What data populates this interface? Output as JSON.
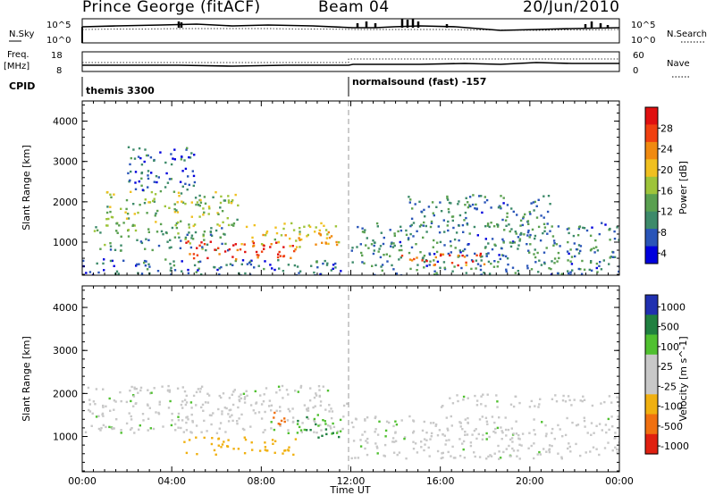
{
  "header": {
    "station": "Prince George (fitACF)",
    "beam": "Beam 04",
    "date": "20/Jun/2010"
  },
  "strip_labels": {
    "nsky": "N.Sky",
    "freq_line1": "Freq.",
    "freq_line2": "[MHz]",
    "cpid": "CPID",
    "nsearch": "N.Search",
    "nave": "Nave"
  },
  "strip_ticks": {
    "nsky_left": [
      "10^5",
      "10^0"
    ],
    "nsky_right": [
      "10^5",
      "10^0"
    ],
    "freq_left": [
      "18",
      "8"
    ],
    "nave_right": [
      "60",
      "0"
    ]
  },
  "cpid_labels": [
    "themis 3300",
    "normalsound (fast) -157"
  ],
  "colors": {
    "power_scale": [
      "#0000dd",
      "#2a55b8",
      "#3d8a6a",
      "#5aa050",
      "#9ec43a",
      "#f0c020",
      "#f08a10",
      "#f04010",
      "#e01010"
    ],
    "velocity_scale": [
      "#2030b0",
      "#208040",
      "#50c030",
      "#c8c8c8",
      "#c8c8c8",
      "#f0b010",
      "#f07010",
      "#e02010"
    ]
  },
  "chart_data": [
    {
      "type": "heatmap",
      "title": "",
      "xlabel": "",
      "ylabel": "Slant Range [km]",
      "x_ticks": [
        "00:00",
        "04:00",
        "08:00",
        "12:00",
        "16:00",
        "20:00",
        "00:00"
      ],
      "xlim_hours": [
        0,
        24
      ],
      "ylim_km": [
        180,
        4500
      ],
      "y_ticks": [
        1000,
        2000,
        3000,
        4000
      ],
      "colorbar_label": "Power [dB]",
      "colorbar_ticks": [
        "28",
        "24",
        "20",
        "16",
        "12",
        "8",
        "4"
      ],
      "colorbar_range": [
        0,
        30
      ],
      "vertical_dashed_line_hour": 12,
      "grid": false,
      "echo_regions": [
        {
          "t_start": 0.0,
          "t_end": 11.8,
          "range_km": [
            150,
            600
          ],
          "power_db": 6
        },
        {
          "t_start": 0.5,
          "t_end": 6.5,
          "range_km": [
            800,
            1400
          ],
          "power_db": 10
        },
        {
          "t_start": 4.5,
          "t_end": 9.5,
          "range_km": [
            600,
            1050
          ],
          "power_db": 26
        },
        {
          "t_start": 1.0,
          "t_end": 7.0,
          "range_km": [
            1400,
            2300
          ],
          "power_db": 14
        },
        {
          "t_start": 7.0,
          "t_end": 11.5,
          "range_km": [
            900,
            1500
          ],
          "power_db": 18
        },
        {
          "t_start": 2.0,
          "t_end": 5.0,
          "range_km": [
            2300,
            3400
          ],
          "power_db": 6
        },
        {
          "t_start": 12.0,
          "t_end": 24.0,
          "range_km": [
            150,
            1500
          ],
          "power_db": 8
        },
        {
          "t_start": 14.0,
          "t_end": 18.0,
          "range_km": [
            450,
            750
          ],
          "power_db": 24
        },
        {
          "t_start": 14.5,
          "t_end": 21.0,
          "range_km": [
            1400,
            2200
          ],
          "power_db": 8
        }
      ]
    },
    {
      "type": "heatmap",
      "title": "",
      "xlabel": "Time UT",
      "ylabel": "Slant Range [km]",
      "x_ticks": [
        "00:00",
        "04:00",
        "08:00",
        "12:00",
        "16:00",
        "20:00",
        "00:00"
      ],
      "xlim_hours": [
        0,
        24
      ],
      "ylim_km": [
        180,
        4500
      ],
      "y_ticks": [
        1000,
        2000,
        3000,
        4000
      ],
      "colorbar_label": "Velocity [m s^-1]",
      "colorbar_ticks": [
        "1000",
        "500",
        "100",
        "25",
        "-25",
        "-100",
        "-500",
        "-1000"
      ],
      "vertical_dashed_line_hour": 12,
      "grid": false,
      "echo_regions": [
        {
          "t_start": 0.0,
          "t_end": 11.8,
          "range_km": [
            1100,
            2200
          ],
          "velocity_mps": 0
        },
        {
          "t_start": 4.5,
          "t_end": 9.5,
          "range_km": [
            600,
            1000
          ],
          "velocity_mps": -300
        },
        {
          "t_start": 9.5,
          "t_end": 11.5,
          "range_km": [
            1000,
            1500
          ],
          "velocity_mps": 100
        },
        {
          "t_start": 8.5,
          "t_end": 9.5,
          "range_km": [
            1300,
            1600
          ],
          "velocity_mps": -600
        },
        {
          "t_start": 12.0,
          "t_end": 24.0,
          "range_km": [
            500,
            1500
          ],
          "velocity_mps": 0
        },
        {
          "t_start": 16.0,
          "t_end": 24.0,
          "range_km": [
            1700,
            2000
          ],
          "velocity_mps": 0
        }
      ]
    }
  ]
}
